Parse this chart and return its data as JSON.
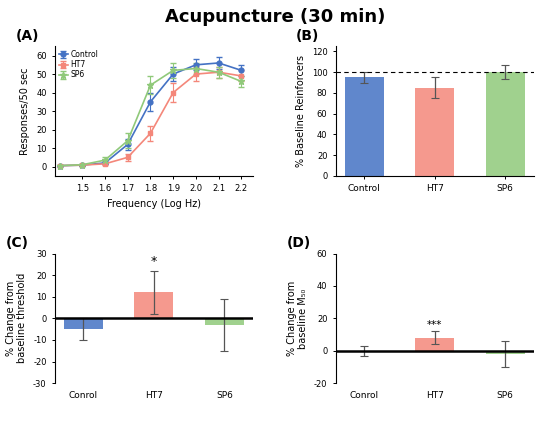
{
  "title": "Acupuncture (30 min)",
  "title_fontsize": 13,
  "colors": {
    "control": "#4472C4",
    "HT7": "#F4877A",
    "SP6": "#90C97A"
  },
  "panel_A": {
    "label": "(A)",
    "x": [
      1.4,
      1.5,
      1.6,
      1.7,
      1.8,
      1.9,
      2.0,
      2.1,
      2.2
    ],
    "control_y": [
      0.5,
      0.8,
      2.0,
      12,
      35,
      50,
      55,
      56,
      52
    ],
    "control_err": [
      0.3,
      0.4,
      0.8,
      3,
      5,
      4,
      3,
      3,
      3
    ],
    "HT7_y": [
      0.5,
      0.8,
      1.5,
      5,
      18,
      40,
      50,
      51,
      49
    ],
    "HT7_err": [
      0.3,
      0.3,
      0.6,
      2,
      4,
      5,
      4,
      3,
      3
    ],
    "SP6_y": [
      0.5,
      1.0,
      3.5,
      14,
      44,
      52,
      53,
      51,
      46
    ],
    "SP6_err": [
      0.3,
      0.5,
      1.5,
      4,
      5,
      4,
      3,
      3,
      3
    ],
    "xlabel": "Frequency (Log Hz)",
    "ylabel": "Responses/50 sec",
    "xlim": [
      1.38,
      2.25
    ],
    "ylim": [
      -5,
      65
    ],
    "xticks": [
      1.5,
      1.6,
      1.7,
      1.8,
      1.9,
      2.0,
      2.1,
      2.2
    ],
    "yticks": [
      0,
      10,
      20,
      30,
      40,
      50,
      60
    ]
  },
  "panel_B": {
    "label": "(B)",
    "categories": [
      "Control",
      "HT7",
      "SP6"
    ],
    "values": [
      95,
      85,
      100
    ],
    "errors": [
      5,
      10,
      7
    ],
    "ylabel": "% Baseline Reinforcers",
    "ylim": [
      0,
      125
    ],
    "yticks": [
      0,
      20,
      40,
      60,
      80,
      100,
      120
    ],
    "dashed_line": 100
  },
  "panel_C": {
    "label": "(C)",
    "categories": [
      "Conrol",
      "HT7",
      "SP6"
    ],
    "values": [
      -5,
      12,
      -3
    ],
    "errors": [
      5,
      10,
      12
    ],
    "ylabel": "% Change from\nbaseline threshold",
    "ylim": [
      -30,
      30
    ],
    "yticks": [
      -30,
      -20,
      -10,
      0,
      10,
      20,
      30
    ],
    "sig_text": "*",
    "sig_idx": 1
  },
  "panel_D": {
    "label": "(D)",
    "categories": [
      "Conrol",
      "HT7",
      "SP6"
    ],
    "values": [
      0,
      8,
      -2
    ],
    "errors": [
      3,
      4,
      8
    ],
    "ylabel": "% Change from\nbaseline M₅₀",
    "ylim": [
      -20,
      60
    ],
    "yticks": [
      -20,
      0,
      20,
      40,
      60
    ],
    "sig_text": "***",
    "sig_idx": 1
  }
}
